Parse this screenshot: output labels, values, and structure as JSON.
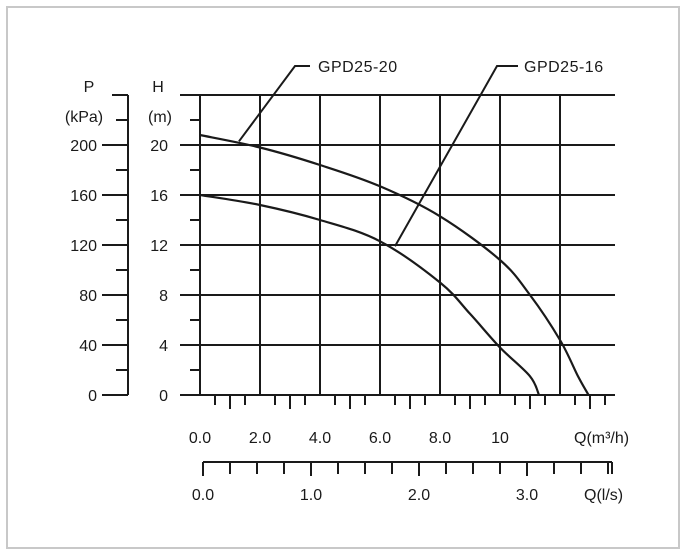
{
  "chart_data": {
    "type": "line",
    "title": "",
    "x": {
      "label": "Q(m³/h)",
      "range": [
        0,
        13.8
      ],
      "ticks": [
        0,
        2,
        4,
        6,
        8,
        10
      ],
      "tick_labels": [
        "0.0",
        "2.0",
        "4.0",
        "6.0",
        "8.0",
        "10"
      ],
      "minor_step": 0.5,
      "gridlines": [
        0,
        2,
        4,
        6,
        8,
        10,
        12
      ]
    },
    "x2": {
      "label": "Q(l/s)",
      "unit_factor": 0.2777778,
      "ticks": [
        0,
        1,
        2,
        3
      ],
      "tick_labels": [
        "0.0",
        "1.0",
        "2.0",
        "3.0"
      ],
      "minor_step": 0.25,
      "range": [
        0,
        3.85
      ]
    },
    "y_head": {
      "label_top": "H",
      "label_unit": "(m)",
      "range": [
        0,
        20
      ],
      "ticks": [
        0,
        4,
        8,
        12,
        16,
        20
      ],
      "tick_labels": [
        "0",
        "4",
        "8",
        "12",
        "16",
        "20"
      ],
      "top_gridline": 24
    },
    "y_pressure": {
      "label_top": "P",
      "label_unit": "(kPa)",
      "ticks": [
        0,
        40,
        80,
        120,
        160,
        200
      ],
      "tick_labels": [
        "0",
        "40",
        "80",
        "120",
        "160",
        "200"
      ],
      "minor_step": 20,
      "top": 240
    },
    "grid": true,
    "series": [
      {
        "name": "GPD25-20",
        "points": [
          [
            0,
            20.8
          ],
          [
            2,
            19.8
          ],
          [
            4,
            18.4
          ],
          [
            6,
            16.7
          ],
          [
            8,
            14.3
          ],
          [
            10,
            10.8
          ],
          [
            11,
            8.0
          ],
          [
            12,
            4.4
          ],
          [
            12.6,
            1.5
          ],
          [
            12.95,
            0
          ]
        ],
        "label_anchor": [
          1.3,
          20.3
        ]
      },
      {
        "name": "GPD25-16",
        "points": [
          [
            0,
            16.0
          ],
          [
            2,
            15.2
          ],
          [
            4,
            14.0
          ],
          [
            6,
            12.3
          ],
          [
            8,
            9.0
          ],
          [
            9,
            6.5
          ],
          [
            10,
            3.8
          ],
          [
            11,
            1.5
          ],
          [
            11.3,
            0
          ]
        ],
        "label_anchor": [
          6.5,
          11.9
        ]
      }
    ]
  }
}
